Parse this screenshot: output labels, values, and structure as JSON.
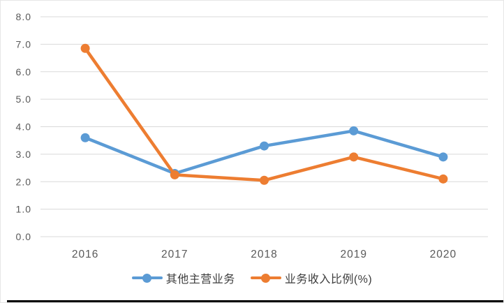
{
  "chart_data": {
    "type": "line",
    "title": "",
    "xlabel": "",
    "ylabel": "",
    "categories": [
      "2016",
      "2017",
      "2018",
      "2019",
      "2020"
    ],
    "series": [
      {
        "name": "其他主营业务",
        "color": "#5B9BD5",
        "marker": "circle",
        "values": [
          3.6,
          2.3,
          3.3,
          3.85,
          2.9
        ]
      },
      {
        "name": "业务收入比例(%)",
        "color": "#ED7D31",
        "marker": "circle",
        "values": [
          6.85,
          2.25,
          2.05,
          2.9,
          2.1
        ]
      }
    ],
    "ylim": [
      0,
      8
    ],
    "yticks": [
      0,
      1,
      2,
      3,
      4,
      5,
      6,
      7,
      8
    ],
    "ytick_labels": [
      "0.0",
      "1.0",
      "2.0",
      "3.0",
      "4.0",
      "5.0",
      "6.0",
      "7.0",
      "8.0"
    ],
    "grid": "horizontal-only",
    "legend_position": "bottom",
    "axis_label_color": "#595959",
    "gridline_color": "#d9d9d9",
    "bottom_rule_color": "#000000"
  }
}
